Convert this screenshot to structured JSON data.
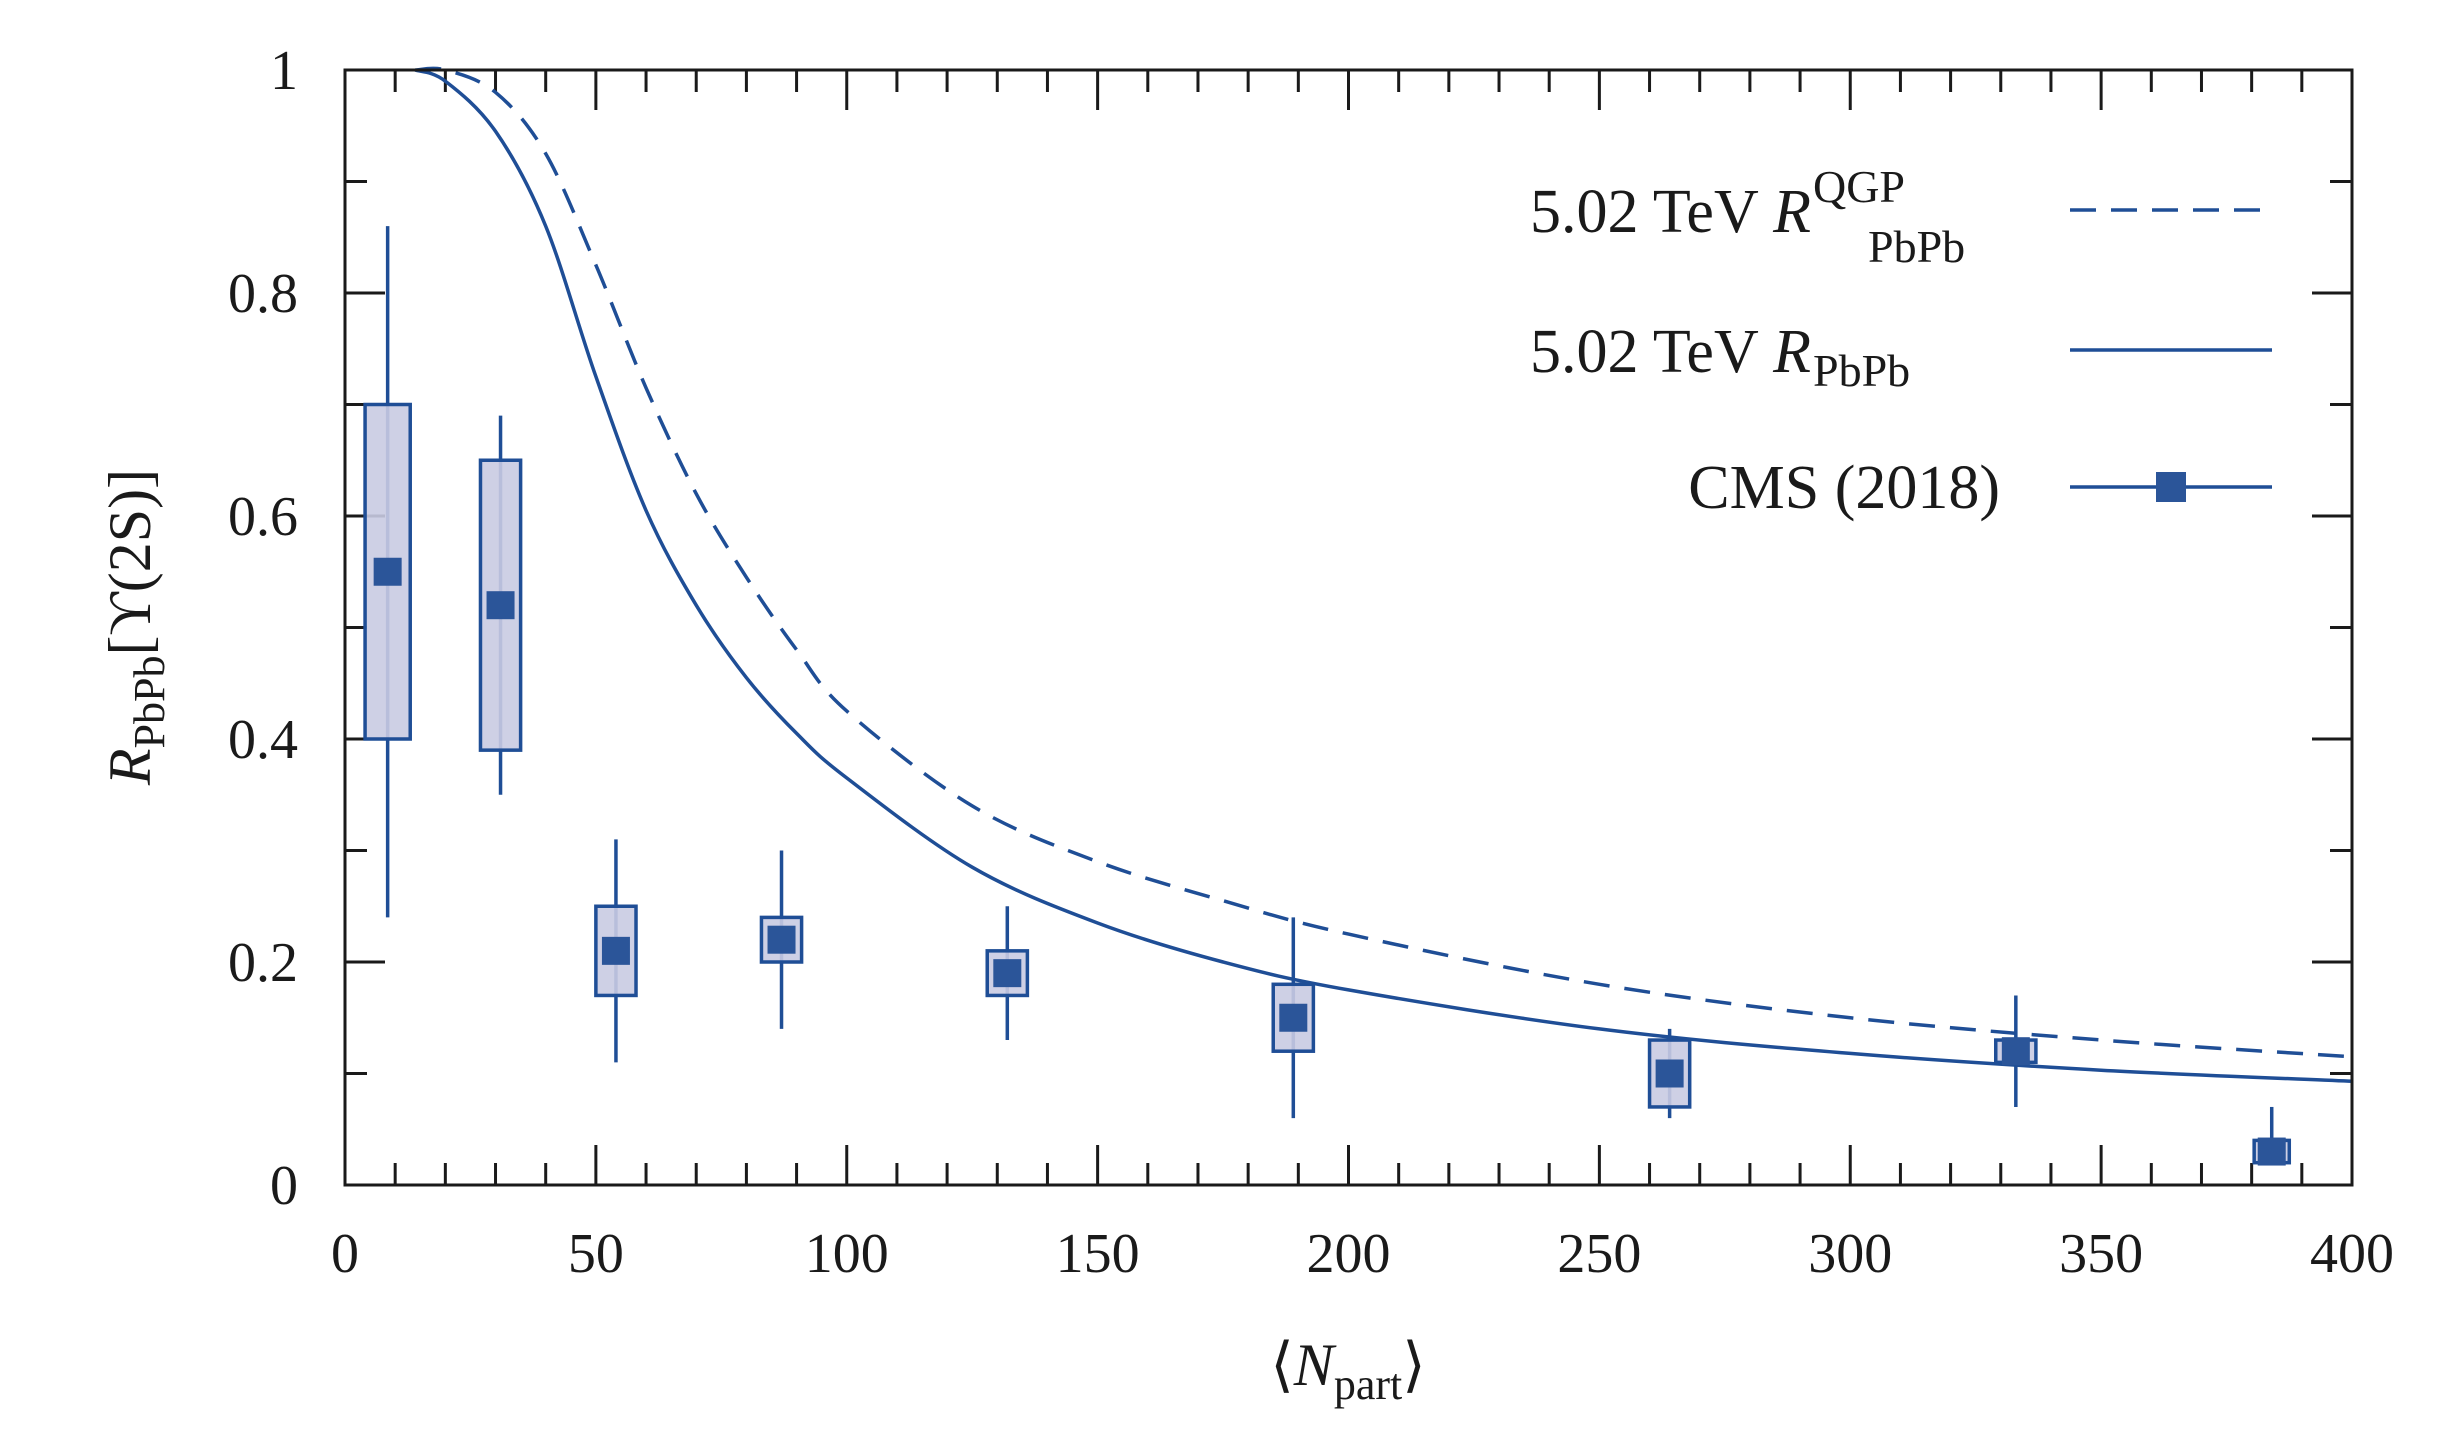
{
  "chart_data": {
    "type": "scatter",
    "x_axis": {
      "label_main": "N",
      "label_sub": "part",
      "range": [
        0,
        400
      ],
      "ticks": [
        0,
        50,
        100,
        150,
        200,
        250,
        300,
        350,
        400
      ],
      "tick_labels": [
        "0",
        "50",
        "100",
        "150",
        "200",
        "250",
        "300",
        "350",
        "400"
      ],
      "minor_step": 10
    },
    "y_axis": {
      "label_main": "R",
      "label_sub": "PbPb",
      "label_rest": "[ϒ(2S)]",
      "range": [
        0,
        1
      ],
      "ticks": [
        0,
        0.2,
        0.4,
        0.6,
        0.8,
        1
      ],
      "tick_labels": [
        "0",
        "0.2",
        "0.4",
        "0.6",
        "0.8",
        "1"
      ],
      "minor_step": 0.1
    },
    "legend": {
      "position": "top-right",
      "entries": [
        {
          "prefix": "5.02 TeV ",
          "main": "R",
          "sup": "QGP",
          "sub": "PbPb",
          "style": "dashed"
        },
        {
          "prefix": "5.02 TeV ",
          "main": "R",
          "sup": "",
          "sub": "PbPb",
          "style": "solid"
        },
        {
          "prefix": "CMS (2018)",
          "main": "",
          "sup": "",
          "sub": "",
          "style": "marker"
        }
      ]
    },
    "series": [
      {
        "name": "5.02 TeV R_PbPb^QGP",
        "style": "dashed",
        "x": [
          14,
          20,
          30,
          40,
          50,
          60,
          70,
          80,
          90,
          100,
          125,
          150,
          175,
          200,
          250,
          300,
          350,
          400
        ],
        "y": [
          1.0,
          1.0,
          0.98,
          0.925,
          0.825,
          0.715,
          0.62,
          0.545,
          0.48,
          0.425,
          0.34,
          0.29,
          0.255,
          0.225,
          0.18,
          0.15,
          0.13,
          0.115
        ]
      },
      {
        "name": "5.02 TeV R_PbPb",
        "style": "solid",
        "x": [
          14,
          20,
          30,
          40,
          50,
          60,
          70,
          80,
          90,
          100,
          125,
          150,
          175,
          200,
          250,
          300,
          350,
          400
        ],
        "y": [
          1.0,
          0.99,
          0.945,
          0.86,
          0.725,
          0.605,
          0.52,
          0.455,
          0.405,
          0.365,
          0.285,
          0.235,
          0.2,
          0.175,
          0.14,
          0.118,
          0.103,
          0.093
        ]
      },
      {
        "name": "CMS (2018)",
        "style": "marker",
        "points": [
          {
            "x": 8.5,
            "y": 0.55,
            "err_lo": 0.24,
            "err_hi": 0.86,
            "sys_lo": 0.4,
            "sys_hi": 0.7,
            "half_width": 4.5
          },
          {
            "x": 31,
            "y": 0.52,
            "err_lo": 0.35,
            "err_hi": 0.69,
            "sys_lo": 0.39,
            "sys_hi": 0.65,
            "half_width": 4.0
          },
          {
            "x": 54,
            "y": 0.21,
            "err_lo": 0.11,
            "err_hi": 0.31,
            "sys_lo": 0.17,
            "sys_hi": 0.25,
            "half_width": 4.0
          },
          {
            "x": 87,
            "y": 0.22,
            "err_lo": 0.14,
            "err_hi": 0.3,
            "sys_lo": 0.2,
            "sys_hi": 0.24,
            "half_width": 4.0
          },
          {
            "x": 132,
            "y": 0.19,
            "err_lo": 0.13,
            "err_hi": 0.25,
            "sys_lo": 0.17,
            "sys_hi": 0.21,
            "half_width": 4.0
          },
          {
            "x": 189,
            "y": 0.15,
            "err_lo": 0.06,
            "err_hi": 0.24,
            "sys_lo": 0.12,
            "sys_hi": 0.18,
            "half_width": 4.0
          },
          {
            "x": 264,
            "y": 0.1,
            "err_lo": 0.06,
            "err_hi": 0.14,
            "sys_lo": 0.07,
            "sys_hi": 0.13,
            "half_width": 4.0
          },
          {
            "x": 333,
            "y": 0.12,
            "err_lo": 0.07,
            "err_hi": 0.17,
            "sys_lo": 0.11,
            "sys_hi": 0.13,
            "half_width": 4.0
          },
          {
            "x": 384,
            "y": 0.03,
            "err_lo": 0.02,
            "err_hi": 0.07,
            "sys_lo": 0.02,
            "sys_hi": 0.04,
            "half_width": 3.5
          }
        ]
      }
    ],
    "colors": {
      "line": "#1f4e96",
      "marker": "#2b5599",
      "box_fill": "#c9cbe2",
      "axis": "#1a1a1a"
    }
  }
}
